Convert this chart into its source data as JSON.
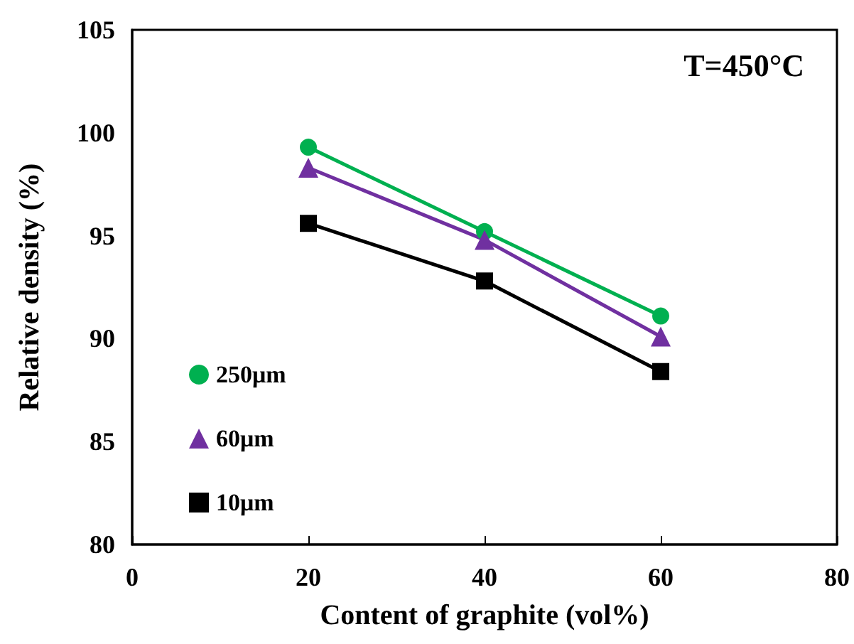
{
  "chart_data": {
    "type": "line",
    "xlabel": "Content of graphite (vol%)",
    "ylabel": "Relative density (%)",
    "annotations": [
      "T=450°C"
    ],
    "x": [
      20,
      40,
      60
    ],
    "series": [
      {
        "name": "250μm",
        "color": "#00b050",
        "marker": "circle",
        "values": [
          99.3,
          95.2,
          91.1
        ]
      },
      {
        "name": "60μm",
        "color": "#7030a0",
        "marker": "triangle",
        "values": [
          98.3,
          94.8,
          90.1
        ]
      },
      {
        "name": "10μm",
        "color": "#000000",
        "marker": "square",
        "values": [
          95.6,
          92.8,
          88.4
        ]
      }
    ],
    "xlim": [
      0,
      80
    ],
    "xticks": [
      0,
      20,
      40,
      60,
      80
    ],
    "ylim": [
      80,
      105
    ],
    "yticks": [
      80,
      85,
      90,
      95,
      100,
      105
    ],
    "grid": false,
    "legend": "left"
  }
}
